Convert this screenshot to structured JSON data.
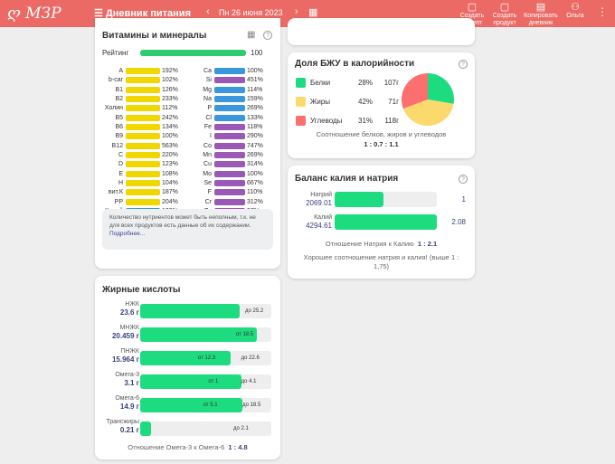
{
  "header": {
    "logo": "ღ МЗР",
    "title": "Дневник питания",
    "date": "Пн 26 июня 2023",
    "actions": [
      {
        "label": "Создать рецепт",
        "icon": "recipe-icon"
      },
      {
        "label": "Создать продукт",
        "icon": "product-icon"
      },
      {
        "label": "Копировать дневник",
        "icon": "copy-diary-icon"
      },
      {
        "label": "Ольга",
        "icon": "user-icon"
      }
    ]
  },
  "vitamins": {
    "title": "Витамины и минералы",
    "rating_label": "Рейтинг",
    "rating": "100",
    "rating_fill": 100,
    "left": [
      {
        "n": "A",
        "v": "192%"
      },
      {
        "n": "b-car",
        "v": "102%"
      },
      {
        "n": "B1",
        "v": "126%"
      },
      {
        "n": "B2",
        "v": "233%"
      },
      {
        "n": "Холин",
        "v": "112%"
      },
      {
        "n": "B5",
        "v": "242%"
      },
      {
        "n": "B6",
        "v": "134%"
      },
      {
        "n": "B9",
        "v": "100%"
      },
      {
        "n": "B12",
        "v": "563%"
      },
      {
        "n": "C",
        "v": "220%"
      },
      {
        "n": "D",
        "v": "123%"
      },
      {
        "n": "E",
        "v": "108%"
      },
      {
        "n": "H",
        "v": "104%"
      },
      {
        "n": "вит.К",
        "v": "187%"
      },
      {
        "n": "PP",
        "v": "204%"
      },
      {
        "n": "Калий",
        "v": "123%",
        "c": "#3a97db"
      }
    ],
    "right": [
      {
        "n": "Ca",
        "v": "100%",
        "c": "#3a97db"
      },
      {
        "n": "Si",
        "v": "451%",
        "c": "#9b59b6"
      },
      {
        "n": "Mg",
        "v": "114%",
        "c": "#3a97db"
      },
      {
        "n": "Na",
        "v": "159%",
        "c": "#3a97db"
      },
      {
        "n": "P",
        "v": "269%",
        "c": "#3a97db"
      },
      {
        "n": "Cl",
        "v": "133%",
        "c": "#3a97db"
      },
      {
        "n": "Fe",
        "v": "118%",
        "c": "#9b59b6"
      },
      {
        "n": "I",
        "v": "290%",
        "c": "#9b59b6"
      },
      {
        "n": "Co",
        "v": "747%",
        "c": "#9b59b6"
      },
      {
        "n": "Mn",
        "v": "269%",
        "c": "#9b59b6"
      },
      {
        "n": "Cu",
        "v": "314%",
        "c": "#9b59b6"
      },
      {
        "n": "Mo",
        "v": "100%",
        "c": "#9b59b6"
      },
      {
        "n": "Se",
        "v": "667%",
        "c": "#9b59b6"
      },
      {
        "n": "F",
        "v": "110%",
        "c": "#9b59b6"
      },
      {
        "n": "Cr",
        "v": "312%",
        "c": "#9b59b6"
      },
      {
        "n": "Zn",
        "v": "97%",
        "c": "#9b59b6"
      }
    ],
    "note": "Количество нутриентов может быть неполным, т.к. не для всех продуктов есть данные об их содержании.",
    "note_link": "Подробнее..."
  },
  "fats": {
    "title": "Жирные кислоты",
    "rows": [
      {
        "name": "НЖК",
        "value": "23.6 г",
        "fill": 76,
        "marks": [
          {
            "t": "до 25.2",
            "p": 80
          }
        ]
      },
      {
        "name": "МНЖК",
        "value": "20.459 г",
        "fill": 89,
        "marks": [
          {
            "t": "от 18.5",
            "p": 73
          }
        ]
      },
      {
        "name": "ПНЖК",
        "value": "15.964 г",
        "fill": 69,
        "marks": [
          {
            "t": "от 12.3",
            "p": 44
          },
          {
            "t": "до 22.6",
            "p": 77
          }
        ]
      },
      {
        "name": "Омега-3",
        "value": "3.1 г",
        "fill": 77,
        "marks": [
          {
            "t": "от 1",
            "p": 52
          },
          {
            "t": "до 4.1",
            "p": 77
          }
        ]
      },
      {
        "name": "Омега-6",
        "value": "14.9 г",
        "fill": 78,
        "marks": [
          {
            "t": "от 5.1",
            "p": 48
          },
          {
            "t": "до 18.5",
            "p": 78
          }
        ]
      },
      {
        "name": "Трансжиры",
        "value": "0.21 г",
        "fill": 8,
        "marks": [
          {
            "t": "до 2.1",
            "p": 71
          }
        ]
      }
    ],
    "ratio_label": "Отношение Омега-3 к Омега-6",
    "ratio": "1 : 4.8"
  },
  "bju": {
    "title": "Доля БЖУ в калорийности",
    "items": [
      {
        "name": "Белки",
        "pct": "28%",
        "g": "107г",
        "color": "#1ddc7f",
        "share": 28
      },
      {
        "name": "Жиры",
        "pct": "42%",
        "g": "71г",
        "color": "#fcd96d",
        "share": 42
      },
      {
        "name": "Углеводы",
        "pct": "31%",
        "g": "118г",
        "color": "#fb6f6f",
        "share": 31
      }
    ],
    "ratio_label": "Соотношение белков, жиров и углеводов",
    "ratio": "1 : 0.7 : 1.1"
  },
  "balance": {
    "title": "Баланс калия и натрия",
    "rows": [
      {
        "name": "Натрий",
        "value": "2069.01",
        "ratio": "1",
        "fill": 48
      },
      {
        "name": "Калий",
        "value": "4294.61",
        "ratio": "2.08",
        "fill": 100
      }
    ],
    "ratio_label": "Отношение Натрия к Калию",
    "ratio": "1 : 2.1",
    "message": "Хорошее соотношение натрия и калия! (выше 1 : 1,75)"
  }
}
